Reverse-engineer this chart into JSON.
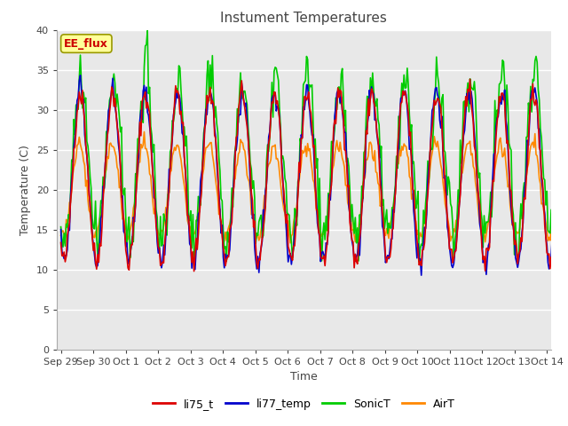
{
  "title": "Instument Temperatures",
  "xlabel": "Time",
  "ylabel": "Temperature (C)",
  "ylim": [
    0,
    40
  ],
  "yticks": [
    0,
    5,
    10,
    15,
    20,
    25,
    30,
    35,
    40
  ],
  "series_colors": {
    "li75_t": "#dd0000",
    "li77_temp": "#0000cc",
    "SonicT": "#00cc00",
    "AirT": "#ff8800"
  },
  "line_widths": {
    "li75_t": 1.2,
    "li77_temp": 1.2,
    "SonicT": 1.2,
    "AirT": 1.2
  },
  "legend_labels": [
    "li75_t",
    "li77_temp",
    "SonicT",
    "AirT"
  ],
  "annotation_text": "EE_flux",
  "bg_color": "#e8e8e8",
  "fig_bg_color": "#ffffff",
  "title_fontsize": 11,
  "axis_label_fontsize": 9,
  "tick_label_fontsize": 8,
  "legend_fontsize": 9,
  "num_days": 15.5,
  "xtick_labels": [
    "Sep 29",
    "Sep 30",
    "Oct 1",
    "Oct 2",
    "Oct 3",
    "Oct 4",
    "Oct 5",
    "Oct 6",
    "Oct 7",
    "Oct 8",
    "Oct 9",
    "Oct 10",
    "Oct 11",
    "Oct 12",
    "Oct 13",
    "Oct 14"
  ],
  "num_points": 465
}
